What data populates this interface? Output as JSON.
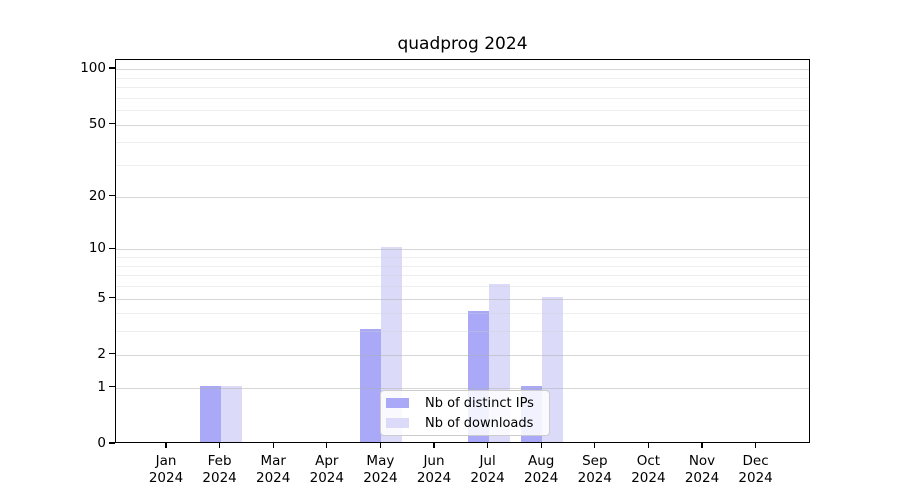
{
  "chart_data": {
    "type": "bar",
    "title": "quadprog 2024",
    "categories": [
      "Jan 2024",
      "Feb 2024",
      "Mar 2024",
      "Apr 2024",
      "May 2024",
      "Jun 2024",
      "Jul 2024",
      "Aug 2024",
      "Sep 2024",
      "Oct 2024",
      "Nov 2024",
      "Dec 2024"
    ],
    "series": [
      {
        "name": "Nb of distinct IPs",
        "color": "#a9a9f7",
        "values": [
          0,
          1,
          0,
          0,
          3,
          0,
          4,
          1,
          0,
          0,
          0,
          0
        ]
      },
      {
        "name": "Nb of downloads",
        "color": "#dbdbf9",
        "values": [
          0,
          1,
          0,
          0,
          10,
          0,
          6,
          5,
          0,
          0,
          0,
          0
        ]
      }
    ],
    "xlabel": "",
    "ylabel": "",
    "y_scale": "log10(1+x)",
    "ylim": [
      0,
      112
    ],
    "y_ticks": [
      0,
      1,
      2,
      5,
      10,
      20,
      50,
      100
    ],
    "y_minor_gridlines": [
      3,
      4,
      6,
      7,
      8,
      9,
      30,
      40,
      60,
      70,
      80,
      90
    ],
    "grid": true,
    "legend_position": "lower center"
  },
  "colors": {
    "background": "#ffffff",
    "axis": "#000000",
    "text": "#000000",
    "grid_major": "rgba(175,175,175,0.5)",
    "grid_minor": "rgba(205,205,205,0.35)",
    "legend_border": "#cccccc"
  }
}
